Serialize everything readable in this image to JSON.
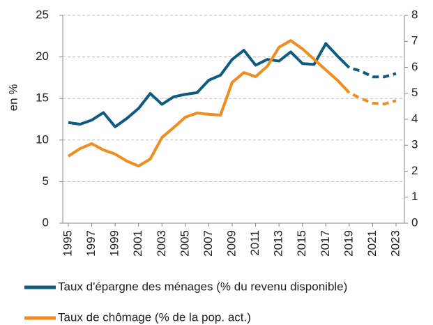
{
  "chart_data": {
    "type": "line",
    "y_label": "en %",
    "x": [
      1995,
      1996,
      1997,
      1998,
      1999,
      2000,
      2001,
      2002,
      2003,
      2004,
      2005,
      2006,
      2007,
      2008,
      2009,
      2010,
      2011,
      2012,
      2013,
      2014,
      2015,
      2016,
      2017,
      2018,
      2019,
      2020,
      2021,
      2022,
      2023
    ],
    "xlim": [
      1995,
      2023
    ],
    "xticks": [
      1995,
      1997,
      1999,
      2001,
      2003,
      2005,
      2007,
      2009,
      2011,
      2013,
      2015,
      2017,
      2019,
      2021,
      2023
    ],
    "ylim": [
      0,
      25
    ],
    "yticks": [
      0,
      5,
      10,
      15,
      20,
      25
    ],
    "y2lim": [
      0,
      8
    ],
    "y2ticks": [
      0,
      1,
      2,
      3,
      4,
      5,
      6,
      7,
      8
    ],
    "grid": true,
    "legend": "bottom",
    "dashed_from": 2019,
    "series": [
      {
        "name": "Taux d'épargne des ménages (% du revenu disponible)",
        "color": "#0d5b80",
        "axis": "y",
        "values": [
          12.1,
          11.9,
          12.4,
          13.3,
          11.6,
          12.6,
          13.8,
          15.6,
          14.3,
          15.2,
          15.5,
          15.7,
          17.2,
          17.8,
          19.7,
          20.8,
          19.0,
          19.7,
          19.5,
          20.6,
          19.2,
          19.1,
          21.6,
          20.1,
          18.7,
          18.3,
          17.6,
          17.6,
          18.0
        ]
      },
      {
        "name": "Taux de chômage (% de la pop. act.)",
        "color": "#f28c1c",
        "axis": "y2",
        "values": [
          2.58,
          2.87,
          3.06,
          2.82,
          2.66,
          2.39,
          2.2,
          2.47,
          3.3,
          3.68,
          4.08,
          4.24,
          4.19,
          4.16,
          5.42,
          5.8,
          5.64,
          6.04,
          6.77,
          7.03,
          6.71,
          6.31,
          5.9,
          5.5,
          5.02,
          4.8,
          4.62,
          4.59,
          4.72
        ]
      }
    ]
  }
}
